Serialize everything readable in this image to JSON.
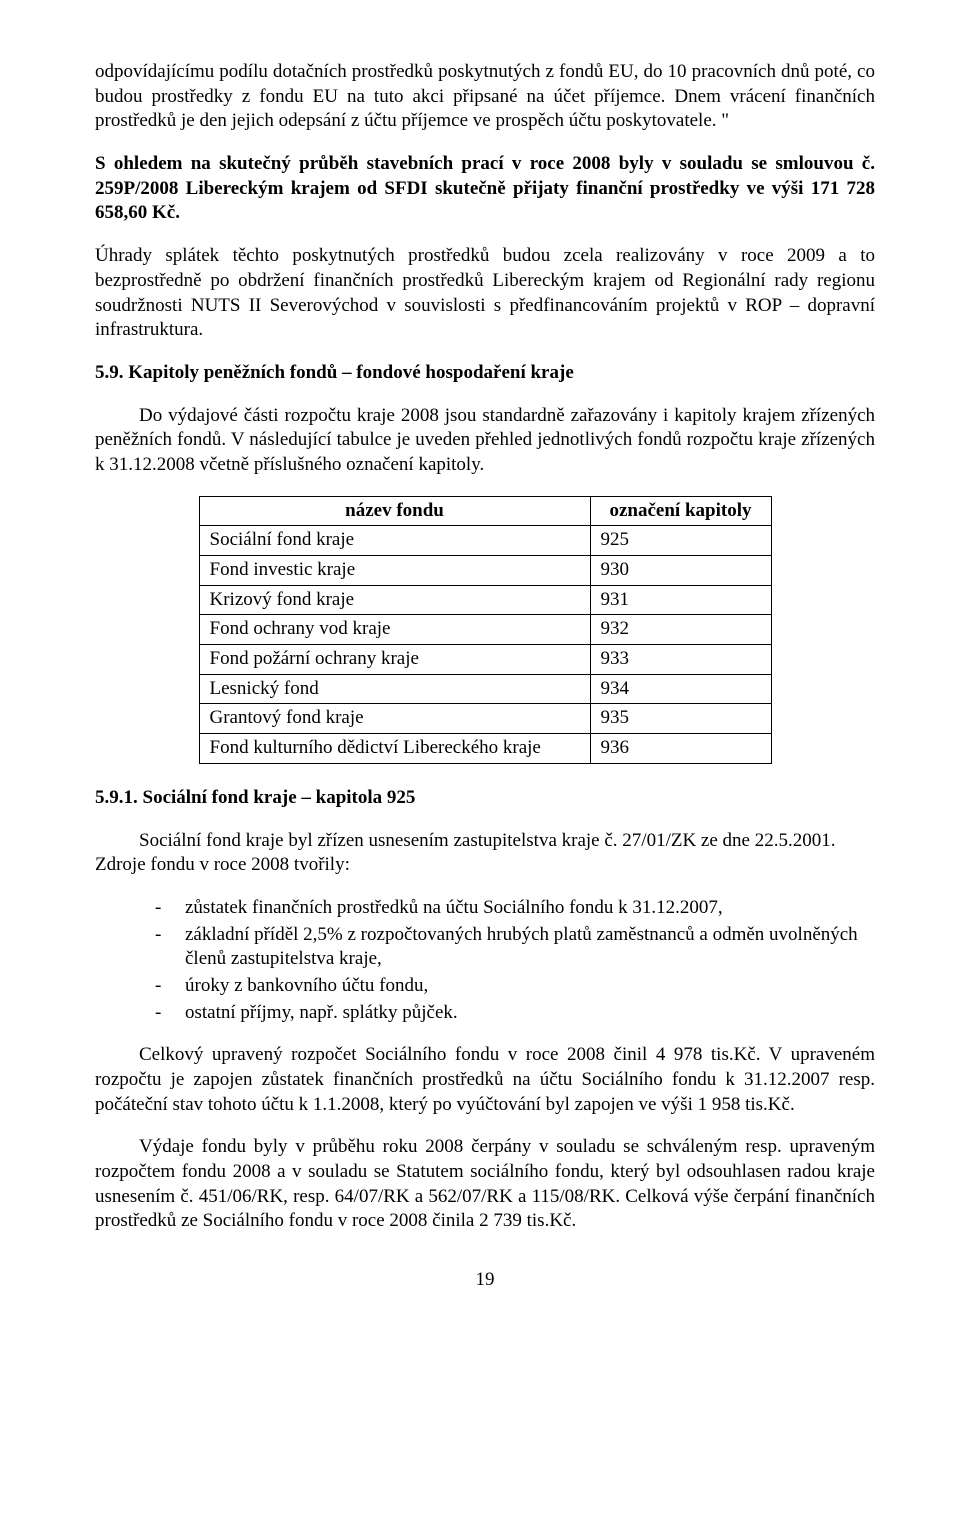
{
  "p1_part1": "odpovídajícímu podílu dotačních prostředků poskytnutých z fondů EU, do 10 pracovních dnů poté, co budou prostředky z fondu EU na tuto akci připsané na účet příjemce. Dnem vrácení finančních prostředků je den jejich odepsání z účtu příjemce ve prospěch účtu poskytovatele. \"",
  "p2": "S ohledem na skutečný průběh stavebních prací v roce 2008 byly v souladu se smlouvou č. 259P/2008 Libereckým krajem od SFDI skutečně přijaty finanční prostředky ve výši 171 728 658,60 Kč.",
  "p3": "Úhrady splátek těchto poskytnutých prostředků budou zcela realizovány v roce 2009 a to bezprostředně po obdržení finančních prostředků Libereckým krajem od Regionální rady regionu soudržnosti NUTS II Severovýchod v souvislosti s předfinancováním projektů v ROP – dopravní infrastruktura.",
  "h59": "5.9. Kapitoly peněžních fondů – fondové hospodaření kraje",
  "p4": "Do výdajové části rozpočtu kraje 2008 jsou standardně zařazovány i kapitoly krajem zřízených peněžních fondů. V následující tabulce je uveden přehled jednotlivých fondů rozpočtu kraje zřízených k 31.12.2008 včetně příslušného označení kapitoly.",
  "table": {
    "col1_header": "název fondu",
    "col2_header": "označení kapitoly",
    "rows": [
      {
        "name": "Sociální fond kraje",
        "chap": "925"
      },
      {
        "name": "Fond investic kraje",
        "chap": "930"
      },
      {
        "name": "Krizový fond kraje",
        "chap": "931"
      },
      {
        "name": "Fond ochrany vod kraje",
        "chap": "932"
      },
      {
        "name": "Fond požární ochrany kraje",
        "chap": "933"
      },
      {
        "name": "Lesnický fond",
        "chap": "934"
      },
      {
        "name": "Grantový fond kraje",
        "chap": "935"
      },
      {
        "name": "Fond kulturního dědictví Libereckého kraje",
        "chap": "936"
      }
    ]
  },
  "h591": "5.9.1. Sociální fond kraje – kapitola 925",
  "p5": "Sociální fond kraje byl zřízen usnesením zastupitelstva kraje č. 27/01/ZK ze dne 22.5.2001. Zdroje fondu v roce 2008 tvořily:",
  "bullets": [
    "zůstatek finančních prostředků na účtu Sociálního fondu k 31.12.2007,",
    "základní příděl 2,5% z rozpočtovaných hrubých platů zaměstnanců a odměn uvolněných členů zastupitelstva kraje,",
    "úroky z bankovního účtu fondu,",
    "ostatní příjmy, např. splátky půjček."
  ],
  "p6": "Celkový upravený rozpočet Sociálního fondu v roce 2008 činil 4 978 tis.Kč. V upraveném rozpočtu je zapojen zůstatek finančních prostředků na účtu Sociálního fondu k  31.12.2007 resp. počáteční stav tohoto účtu k 1.1.2008, který po vyúčtování byl zapojen ve výši 1 958 tis.Kč.",
  "p7": "Výdaje fondu byly v průběhu roku 2008 čerpány v souladu se schváleným resp. upraveným rozpočtem fondu 2008 a v souladu se Statutem sociálního fondu, který byl odsouhlasen radou kraje usnesením č. 451/06/RK, resp. 64/07/RK a 562/07/RK a 115/08/RK. Celková výše čerpání finančních prostředků ze Sociálního fondu v roce 2008 činila 2 739 tis.Kč.",
  "page_num": "19"
}
